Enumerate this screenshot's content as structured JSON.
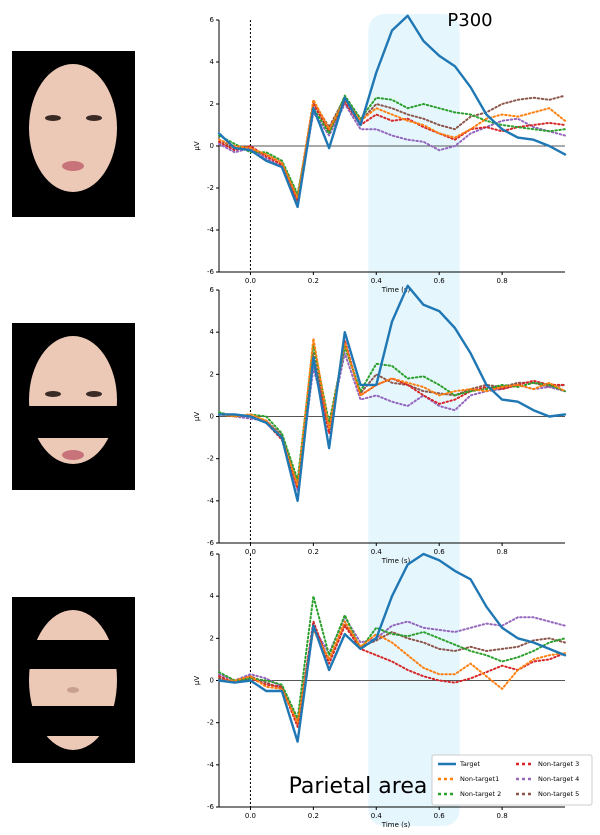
{
  "chart_data": [
    {
      "type": "line",
      "x": [
        -0.1,
        -0.05,
        0,
        0.05,
        0.1,
        0.15,
        0.2,
        0.25,
        0.3,
        0.35,
        0.4,
        0.45,
        0.5,
        0.55,
        0.6,
        0.65,
        0.7,
        0.75,
        0.8,
        0.85,
        0.9,
        0.95,
        1.0
      ],
      "xlim": [
        -0.1,
        1.0
      ],
      "xticks": [
        {
          "value": 0,
          "label": "0.0"
        },
        0.2,
        0.4,
        0.6,
        0.8
      ],
      "ylim": [
        -6,
        6
      ],
      "yticks": [
        -6,
        -4,
        -2,
        0,
        2,
        4,
        6
      ],
      "xlabel": "Time (s)",
      "ylabel": "µV",
      "annotation": "P300",
      "vline": 0,
      "span": [
        0.375,
        0.665
      ],
      "series": [
        {
          "color": "#1f77b4",
          "style": "solid",
          "values": [
            0.6,
            -0.1,
            -0.2,
            -0.7,
            -1.0,
            -2.9,
            1.8,
            -0.1,
            2.3,
            1.0,
            3.5,
            5.5,
            6.2,
            5.0,
            4.3,
            3.8,
            2.8,
            1.5,
            0.8,
            0.4,
            0.3,
            0.0,
            -0.4
          ]
        },
        {
          "color": "#ff7f0e",
          "style": "dotted",
          "values": [
            0.3,
            0,
            -0.1,
            -0.4,
            -0.8,
            -2.5,
            2.2,
            0.8,
            2.2,
            1.2,
            1.8,
            1.5,
            1.2,
            1.0,
            0.6,
            0.4,
            0.8,
            1.3,
            1.5,
            1.4,
            1.6,
            1.8,
            1.2
          ]
        },
        {
          "color": "#2ca02c",
          "style": "dotted",
          "values": [
            0.5,
            0.1,
            -0.3,
            -0.3,
            -0.7,
            -2.3,
            1.8,
            0.6,
            2.4,
            1.3,
            2.3,
            2.2,
            1.8,
            2.0,
            1.8,
            1.6,
            1.5,
            1.2,
            1.0,
            0.9,
            0.8,
            0.7,
            0.8
          ]
        },
        {
          "color": "#d62728",
          "style": "dotted",
          "values": [
            0.2,
            -0.2,
            0,
            -0.5,
            -0.9,
            -2.6,
            2.0,
            0.7,
            2.1,
            1.0,
            1.5,
            1.2,
            1.3,
            0.9,
            0.6,
            0.3,
            0.8,
            0.9,
            0.7,
            0.9,
            1.0,
            1.1,
            1.0
          ]
        },
        {
          "color": "#9467bd",
          "style": "dotted",
          "values": [
            0.1,
            -0.3,
            -0.1,
            -0.6,
            -1.0,
            -2.7,
            1.6,
            0.5,
            2.0,
            0.8,
            0.8,
            0.5,
            0.3,
            0.2,
            -0.2,
            0.0,
            0.6,
            0.9,
            1.2,
            1.3,
            0.9,
            0.7,
            0.5
          ]
        },
        {
          "color": "#8c564b",
          "style": "dotted",
          "values": [
            0.3,
            -0.1,
            -0.2,
            -0.4,
            -0.8,
            -2.4,
            2.1,
            0.9,
            2.3,
            1.2,
            2.0,
            1.8,
            1.5,
            1.3,
            1.0,
            0.8,
            1.4,
            1.6,
            2.0,
            2.2,
            2.3,
            2.2,
            2.4
          ]
        }
      ]
    },
    {
      "type": "line",
      "x": [
        -0.1,
        -0.05,
        0,
        0.05,
        0.1,
        0.15,
        0.2,
        0.25,
        0.3,
        0.35,
        0.4,
        0.45,
        0.5,
        0.55,
        0.6,
        0.65,
        0.7,
        0.75,
        0.8,
        0.85,
        0.9,
        0.95,
        1.0
      ],
      "xlim": [
        -0.1,
        1.0
      ],
      "xticks": [
        {
          "value": 0,
          "label": "0.0"
        },
        0.2,
        0.4,
        0.6,
        0.8
      ],
      "ylim": [
        -6,
        6
      ],
      "yticks": [
        -6,
        -4,
        -2,
        0,
        2,
        4,
        6
      ],
      "xlabel": "Time (s)",
      "ylabel": "µV",
      "vline": 0,
      "series": [
        {
          "color": "#1f77b4",
          "style": "solid",
          "values": [
            0.1,
            0.1,
            0,
            -0.3,
            -1.0,
            -4.0,
            2.8,
            -1.5,
            4.0,
            1.5,
            1.5,
            4.5,
            6.2,
            5.3,
            5.0,
            4.2,
            3.0,
            1.5,
            0.8,
            0.7,
            0.3,
            0.0,
            0.1
          ]
        },
        {
          "color": "#ff7f0e",
          "style": "dotted",
          "values": [
            0.1,
            0,
            0.1,
            -0.2,
            -1.0,
            -3.3,
            3.7,
            -0.6,
            3.5,
            1.0,
            1.5,
            1.8,
            1.6,
            1.4,
            1.0,
            1.2,
            1.3,
            1.2,
            1.4,
            1.5,
            1.3,
            1.6,
            1.2
          ]
        },
        {
          "color": "#2ca02c",
          "style": "dotted",
          "values": [
            0.2,
            0,
            0.1,
            0,
            -0.8,
            -3.0,
            3.4,
            -0.3,
            3.3,
            1.2,
            2.5,
            2.4,
            1.8,
            1.9,
            1.5,
            1.0,
            1.2,
            1.3,
            1.5,
            1.4,
            1.6,
            1.5,
            1.2
          ]
        },
        {
          "color": "#d62728",
          "style": "dotted",
          "values": [
            0.1,
            0.1,
            0,
            -0.3,
            -1.1,
            -3.4,
            2.7,
            -0.8,
            3.6,
            1.0,
            1.5,
            1.8,
            1.5,
            1.0,
            0.6,
            0.8,
            1.2,
            1.4,
            1.3,
            1.5,
            1.7,
            1.5,
            1.5
          ]
        },
        {
          "color": "#9467bd",
          "style": "dotted",
          "values": [
            0.1,
            0,
            -0.1,
            -0.2,
            -1.0,
            -3.5,
            2.3,
            -0.5,
            3.0,
            0.8,
            1.0,
            0.7,
            0.5,
            1.0,
            0.5,
            0.3,
            1.0,
            1.2,
            1.3,
            1.5,
            1.3,
            1.4,
            1.2
          ]
        },
        {
          "color": "#8c564b",
          "style": "dotted",
          "values": [
            0.2,
            0,
            0,
            -0.2,
            -0.9,
            -3.2,
            3.0,
            -0.4,
            3.4,
            1.1,
            2.0,
            1.6,
            1.5,
            1.2,
            1.1,
            1.0,
            1.3,
            1.5,
            1.4,
            1.6,
            1.6,
            1.4,
            1.5
          ]
        }
      ]
    },
    {
      "type": "line",
      "x": [
        -0.1,
        -0.05,
        0,
        0.05,
        0.1,
        0.15,
        0.2,
        0.25,
        0.3,
        0.35,
        0.4,
        0.45,
        0.5,
        0.55,
        0.6,
        0.65,
        0.7,
        0.75,
        0.8,
        0.85,
        0.9,
        0.95,
        1.0
      ],
      "xlim": [
        -0.1,
        1.0
      ],
      "xticks": [
        {
          "value": 0,
          "label": "0.0"
        },
        0.2,
        0.4,
        0.6,
        0.8
      ],
      "ylim": [
        -6,
        6
      ],
      "yticks": [
        -6,
        -4,
        -2,
        0,
        2,
        4,
        6
      ],
      "xlabel": "Time (s)",
      "ylabel": "µV",
      "annotation": "Parietal area",
      "vline": 0,
      "legend": "lower right",
      "series": [
        {
          "name": "Target",
          "color": "#1f77b4",
          "style": "solid",
          "values": [
            0,
            -0.1,
            0,
            -0.5,
            -0.5,
            -2.9,
            2.6,
            0.5,
            2.2,
            1.5,
            2.0,
            4.0,
            5.5,
            6.0,
            5.7,
            5.2,
            4.8,
            3.5,
            2.5,
            2.0,
            1.8,
            1.5,
            1.2
          ]
        },
        {
          "name": "Non-target1",
          "color": "#ff7f0e",
          "style": "dotted",
          "values": [
            0,
            0,
            0.2,
            -0.3,
            -0.4,
            -2.0,
            2.4,
            1.0,
            2.8,
            1.6,
            2.2,
            1.8,
            1.2,
            0.6,
            0.3,
            0.3,
            0.8,
            0.2,
            -0.4,
            0.5,
            1.0,
            1.2,
            1.3
          ]
        },
        {
          "name": "Non-target 2",
          "color": "#2ca02c",
          "style": "dotted",
          "values": [
            0.4,
            0,
            0.1,
            0,
            -0.2,
            -1.8,
            4.0,
            1.2,
            3.1,
            1.5,
            2.5,
            2.2,
            2.1,
            2.3,
            2.0,
            1.7,
            1.4,
            1.2,
            0.9,
            1.1,
            1.4,
            1.8,
            2.0
          ]
        },
        {
          "name": "Non-target 3",
          "color": "#d62728",
          "style": "dotted",
          "values": [
            0.2,
            -0.1,
            0.1,
            -0.2,
            -0.3,
            -2.2,
            2.8,
            0.8,
            2.6,
            1.5,
            1.2,
            0.9,
            0.5,
            0.2,
            0.0,
            -0.1,
            0.1,
            0.4,
            0.7,
            0.5,
            0.9,
            1.0,
            1.3
          ]
        },
        {
          "name": "Non-target 4",
          "color": "#9467bd",
          "style": "dotted",
          "values": [
            0.3,
            0,
            0.3,
            0.1,
            -0.3,
            -1.9,
            2.5,
            1.3,
            3.0,
            1.8,
            2.0,
            2.6,
            2.8,
            2.5,
            2.4,
            2.3,
            2.5,
            2.7,
            2.6,
            3.0,
            3.0,
            2.8,
            2.6
          ]
        },
        {
          "name": "Non-target 5",
          "color": "#8c564b",
          "style": "dotted",
          "values": [
            0.1,
            -0.1,
            0.2,
            -0.1,
            -0.4,
            -2.0,
            2.5,
            1.0,
            2.7,
            1.6,
            1.9,
            2.3,
            2.0,
            1.8,
            1.5,
            1.4,
            1.6,
            1.4,
            1.5,
            1.6,
            1.9,
            2.0,
            1.8
          ]
        }
      ]
    }
  ]
}
